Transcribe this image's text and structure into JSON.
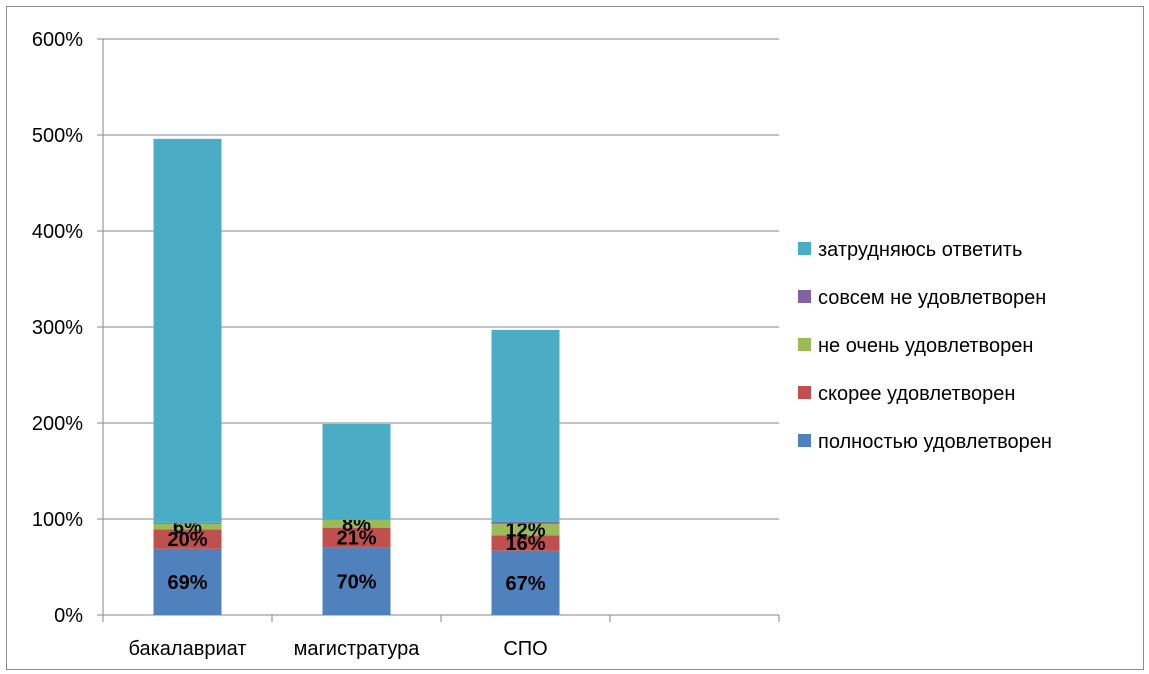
{
  "chart_data": {
    "type": "bar",
    "stacked": true,
    "categories": [
      "бакалавриат",
      "магистратура",
      "СПО"
    ],
    "ylim": [
      0,
      6
    ],
    "yticks": [
      {
        "value": 0,
        "label": "0%"
      },
      {
        "value": 1,
        "label": "100%"
      },
      {
        "value": 2,
        "label": "200%"
      },
      {
        "value": 3,
        "label": "300%"
      },
      {
        "value": 4,
        "label": "400%"
      },
      {
        "value": 5,
        "label": "500%"
      },
      {
        "value": 6,
        "label": "600%"
      }
    ],
    "grid": true,
    "legend_position": "right",
    "series": [
      {
        "name": "полностью удовлетворен",
        "color": "#4F81BD",
        "values": [
          0.69,
          0.7,
          0.67
        ],
        "labels": [
          "69%",
          "70%",
          "67%"
        ]
      },
      {
        "name": "скорее удовлетворен",
        "color": "#C0504D",
        "values": [
          0.2,
          0.21,
          0.16
        ],
        "labels": [
          "20%",
          "21%",
          "16%"
        ]
      },
      {
        "name": "не очень удовлетворен",
        "color": "#9BBB59",
        "values": [
          0.06,
          0.08,
          0.12
        ],
        "labels": [
          "6%",
          "8%",
          "12%"
        ]
      },
      {
        "name": "совсем не удовлетворен",
        "color": "#8064A2",
        "values": [
          0.01,
          0.0,
          0.02
        ],
        "labels": [
          "",
          "",
          ""
        ]
      },
      {
        "name": "затрудняюсь ответить",
        "color": "#4BACC6",
        "values": [
          4.0,
          1.0,
          2.0
        ],
        "labels": [
          "",
          "",
          ""
        ]
      }
    ],
    "legend_order": [
      4,
      3,
      2,
      1,
      0
    ]
  }
}
